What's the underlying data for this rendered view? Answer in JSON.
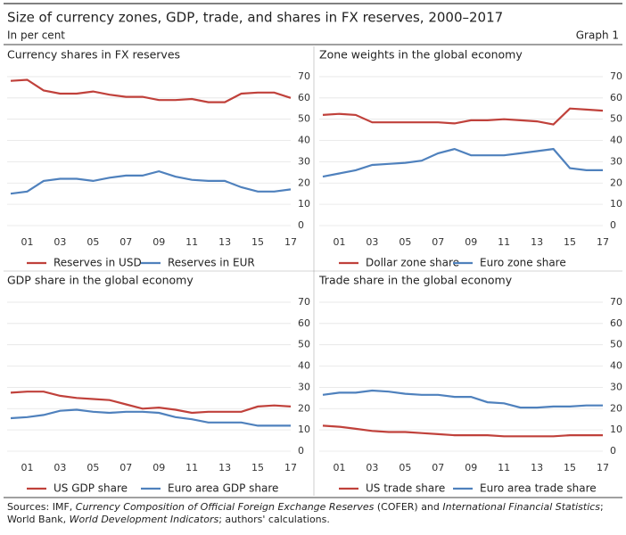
{
  "title": "Size of currency zones, GDP, trade, and shares in FX reserves, 2000–2017",
  "subtitle": "In per cent",
  "graph_label": "Graph 1",
  "sources": [
    "Sources: IMF, ",
    "Currency Composition of Official Foreign Exchange Reserves",
    " (COFER) and ",
    "International Financial Statistics",
    "; World Bank, ",
    "World Development Indicators",
    "; authors' calculations."
  ],
  "chart_data": [
    {
      "type": "line",
      "title": "Currency shares in FX reserves",
      "categories": [
        null,
        "01",
        null,
        "03",
        null,
        "05",
        null,
        "07",
        null,
        "09",
        null,
        "11",
        null,
        "13",
        null,
        "15",
        null,
        "17"
      ],
      "series": [
        {
          "name": "Reserves in USD",
          "color": "#c0413b",
          "values": [
            68,
            68.5,
            63.5,
            62,
            62,
            63,
            61.5,
            60.5,
            60.5,
            59,
            59,
            59.5,
            58,
            58,
            62,
            62.5,
            62.5,
            60
          ]
        },
        {
          "name": "Reserves in EUR",
          "color": "#4f81bd",
          "values": [
            15,
            16,
            21,
            22,
            22,
            21,
            22.5,
            23.5,
            23.5,
            25.5,
            23,
            21.5,
            21,
            21,
            18,
            16,
            16,
            17
          ]
        }
      ],
      "ylim": [
        0,
        75
      ],
      "yticks": [
        0,
        10,
        20,
        30,
        40,
        50,
        60,
        70
      ],
      "grid": true
    },
    {
      "type": "line",
      "title": "Zone weights in the global economy",
      "categories": [
        null,
        "01",
        null,
        "03",
        null,
        "05",
        null,
        "07",
        null,
        "09",
        null,
        "11",
        null,
        "13",
        null,
        "15",
        null,
        "17"
      ],
      "series": [
        {
          "name": "Dollar zone share",
          "color": "#c0413b",
          "values": [
            52,
            52.5,
            52,
            48.5,
            48.5,
            48.5,
            48.5,
            48.5,
            48,
            49.5,
            49.5,
            50,
            49.5,
            49,
            47.5,
            55,
            54.5,
            54
          ]
        },
        {
          "name": "Euro zone share",
          "color": "#4f81bd",
          "values": [
            23,
            24.5,
            26,
            28.5,
            29,
            29.5,
            30.5,
            34,
            36,
            33,
            33,
            33,
            34,
            35,
            36,
            27,
            26,
            26
          ]
        }
      ],
      "ylim": [
        0,
        75
      ],
      "yticks": [
        0,
        10,
        20,
        30,
        40,
        50,
        60,
        70
      ],
      "grid": true
    },
    {
      "type": "line",
      "title": "GDP share in the global economy",
      "categories": [
        null,
        "01",
        null,
        "03",
        null,
        "05",
        null,
        "07",
        null,
        "09",
        null,
        "11",
        null,
        "13",
        null,
        "15",
        null,
        "17"
      ],
      "series": [
        {
          "name": "US GDP share",
          "color": "#c0413b",
          "values": [
            27.5,
            28,
            28,
            26,
            25,
            24.5,
            24,
            22,
            20,
            20.5,
            19.5,
            18,
            18.5,
            18.5,
            18.5,
            21,
            21.5,
            21
          ]
        },
        {
          "name": "Euro area GDP share",
          "color": "#4f81bd",
          "values": [
            15.5,
            16,
            17,
            19,
            19.5,
            18.5,
            18,
            18.5,
            18.5,
            18,
            16,
            15,
            13.5,
            13.5,
            13.5,
            12,
            12,
            12
          ]
        }
      ],
      "ylim": [
        0,
        75
      ],
      "yticks": [
        0,
        10,
        20,
        30,
        40,
        50,
        60,
        70
      ],
      "grid": true
    },
    {
      "type": "line",
      "title": "Trade share in the global economy",
      "categories": [
        null,
        "01",
        null,
        "03",
        null,
        "05",
        null,
        "07",
        null,
        "09",
        null,
        "11",
        null,
        "13",
        null,
        "15",
        null,
        "17"
      ],
      "series": [
        {
          "name": "US trade share",
          "color": "#c0413b",
          "values": [
            12,
            11.5,
            10.5,
            9.5,
            9,
            9,
            8.5,
            8,
            7.5,
            7.5,
            7.5,
            7,
            7,
            7,
            7,
            7.5,
            7.5,
            7.5
          ]
        },
        {
          "name": "Euro area trade share",
          "color": "#4f81bd",
          "values": [
            26.5,
            27.5,
            27.5,
            28.5,
            28,
            27,
            26.5,
            26.5,
            25.5,
            25.5,
            23,
            22.5,
            20.5,
            20.5,
            21,
            21,
            21.5,
            21.5
          ]
        }
      ],
      "ylim": [
        0,
        75
      ],
      "yticks": [
        0,
        10,
        20,
        30,
        40,
        50,
        60,
        70
      ],
      "grid": true
    }
  ]
}
